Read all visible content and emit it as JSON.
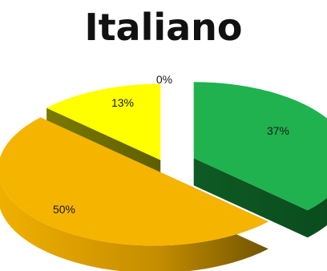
{
  "chart_data": {
    "type": "pie",
    "title": "Italiano",
    "three_d": true,
    "exploded": true,
    "labels_shown": [
      "37%",
      "50%",
      "13%",
      "0%"
    ],
    "slices": [
      {
        "value": 37,
        "label": "37%",
        "color": "#1fb24f",
        "side_color": "#136b2c",
        "exploded": true
      },
      {
        "value": 50,
        "label": "50%",
        "color": "#f5b400",
        "side_color": "#8a6600",
        "exploded": true
      },
      {
        "value": 13,
        "label": "13%",
        "color": "#ffff00",
        "side_color": "#6b6b00",
        "exploded": true
      },
      {
        "value": 0,
        "label": "0%",
        "color": "#ffffff",
        "side_color": "#ffffff",
        "exploded": false
      }
    ]
  }
}
